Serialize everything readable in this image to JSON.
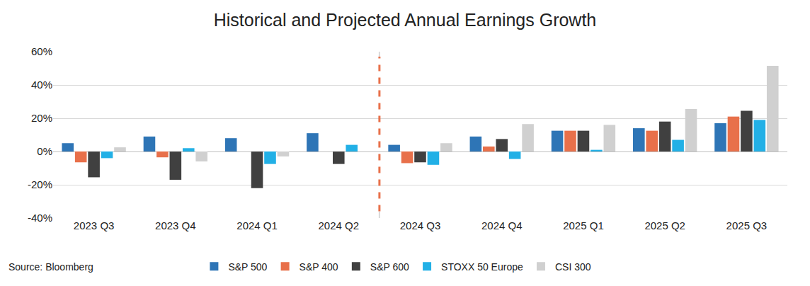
{
  "chart_data": {
    "type": "bar",
    "title": "Historical and Projected Annual Earnings Growth",
    "source": "Source: Bloomberg",
    "categories": [
      "2023 Q3",
      "2023 Q4",
      "2024 Q1",
      "2024 Q2",
      "2024 Q3",
      "2024 Q4",
      "2025 Q1",
      "2025 Q2",
      "2025 Q3"
    ],
    "series": [
      {
        "name": "S&P 500",
        "color": "#2e75b6",
        "values": [
          5,
          9,
          8,
          11,
          4,
          9,
          12.5,
          14,
          17
        ]
      },
      {
        "name": "S&P 400",
        "color": "#e8704a",
        "values": [
          -6.5,
          -3.5,
          0,
          0,
          -7,
          3,
          12.5,
          12.5,
          21
        ]
      },
      {
        "name": "S&P 600",
        "color": "#404040",
        "values": [
          -15.5,
          -17,
          -22,
          -7.5,
          -6.5,
          7.5,
          12.5,
          18,
          24.5
        ]
      },
      {
        "name": "STOXX 50 Europe",
        "color": "#22b0e6",
        "values": [
          -4,
          2,
          -7.5,
          4,
          -8,
          -4.5,
          1,
          7,
          19
        ]
      },
      {
        "name": "CSI 300",
        "color": "#d0d0d0",
        "values": [
          2.5,
          -6,
          -3,
          0,
          5,
          16.5,
          16,
          25.5,
          51.5
        ]
      }
    ],
    "ylim": [
      -40,
      60
    ],
    "yticks": [
      {
        "value": -40,
        "label": "-40%"
      },
      {
        "value": -20,
        "label": "-20%"
      },
      {
        "value": 0,
        "label": "0%"
      },
      {
        "value": 20,
        "label": "20%"
      },
      {
        "value": 40,
        "label": "40%"
      },
      {
        "value": 60,
        "label": "60%"
      }
    ],
    "grid": true,
    "legend": "bottom"
  }
}
